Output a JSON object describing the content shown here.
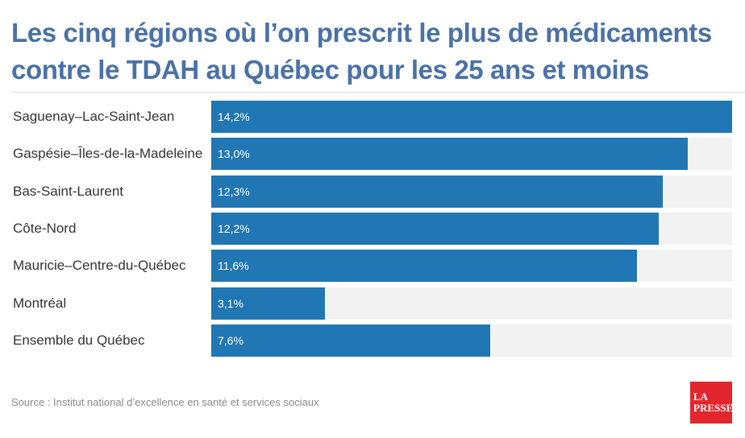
{
  "title": "Les cinq régions où l’on prescrit le plus de médicaments contre le TDAH au Québec pour les 25 ans et moins",
  "source": "Source : Institut national d’excellence en santé et services sociaux",
  "logo": {
    "line1": "LA",
    "line2": "PRESSE"
  },
  "colors": {
    "title": "#4a72a6",
    "bar": "#2077b4",
    "track": "#f2f2f2",
    "logo": "#e3262d"
  },
  "chart_data": {
    "type": "bar",
    "orientation": "horizontal",
    "categories": [
      "Saguenay–Lac-Saint-Jean",
      "Gaspésie–Îles-de-la-Madeleine",
      "Bas-Saint-Laurent",
      "Côte-Nord",
      "Mauricie–Centre-du-Québec",
      "Montréal",
      "Ensemble du Québec"
    ],
    "values": [
      14.2,
      13.0,
      12.3,
      12.2,
      11.6,
      3.1,
      7.6
    ],
    "value_labels": [
      "14,2%",
      "13,0%",
      "12,3%",
      "12,2%",
      "11,6%",
      "3,1%",
      "7,6%"
    ],
    "xlim": [
      0,
      14.2
    ],
    "unit": "%",
    "grid": false,
    "legend": "none"
  }
}
